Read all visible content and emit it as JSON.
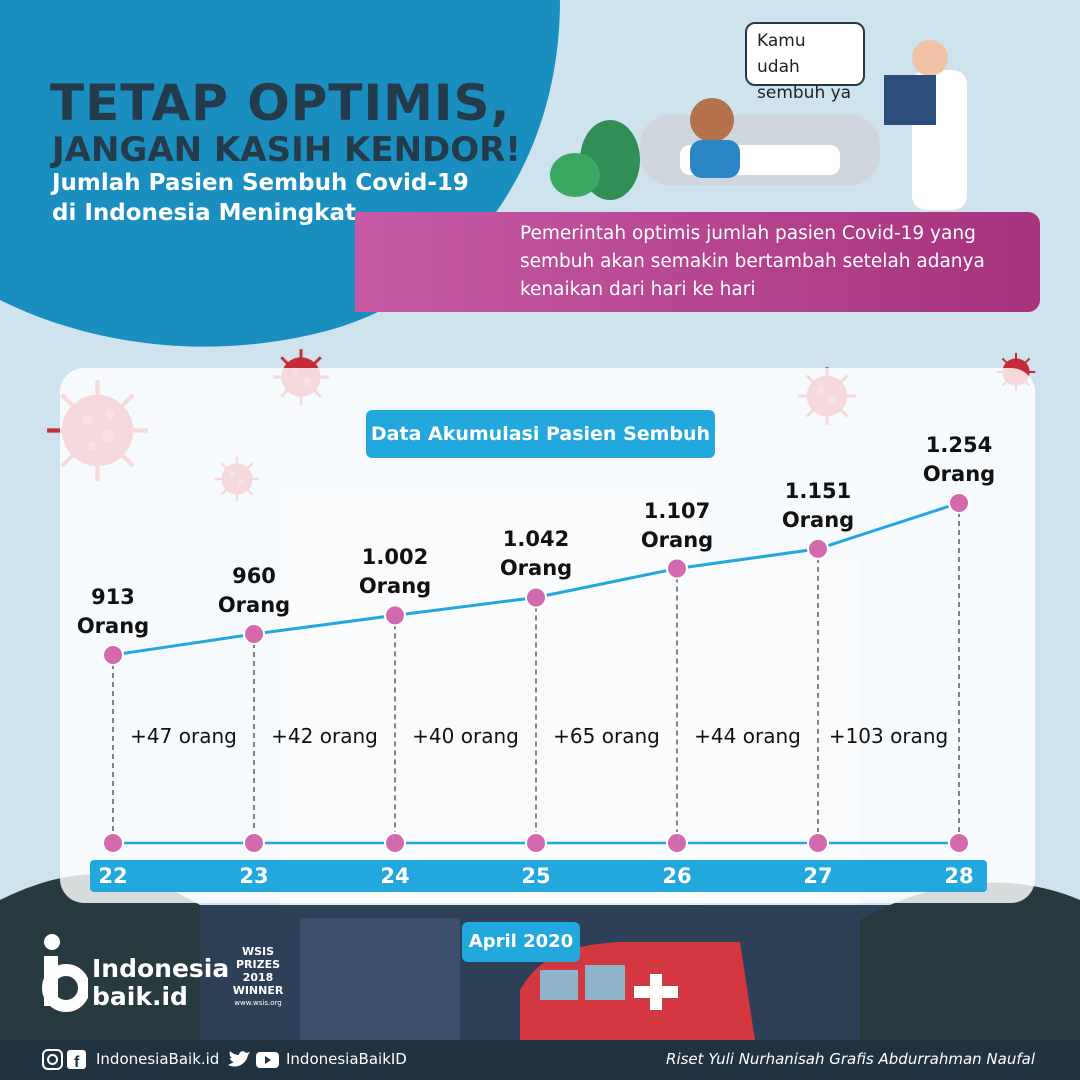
{
  "header": {
    "title_line1": "TETAP OPTIMIS,",
    "title_line2": "JANGAN KASIH KENDOR!",
    "subtitle": "Jumlah Pasien Sembuh Covid-19 di Indonesia Meningkat"
  },
  "speech_bubble": "Kamu udah sembuh ya",
  "description": "Pemerintah optimis jumlah pasien Covid-19 yang sembuh akan semakin bertambah setelah adanya kenaikan dari hari ke hari",
  "colors": {
    "accent": "#23a8dd",
    "point": "#d36ab0",
    "line": "#23a8dd",
    "pink": "#b6428f",
    "dark": "#233b4a"
  },
  "chart_data": {
    "type": "line",
    "title": "Data Akumulasi Pasien Sembuh",
    "xlabel": "April 2020",
    "x": [
      "22",
      "23",
      "24",
      "25",
      "26",
      "27",
      "28"
    ],
    "values": [
      913,
      960,
      1002,
      1042,
      1107,
      1151,
      1254
    ],
    "value_labels": [
      "913",
      "960",
      "1.002",
      "1.042",
      "1.107",
      "1.151",
      "1.254"
    ],
    "unit": "Orang",
    "increases": [
      "+47 orang",
      "+42 orang",
      "+40 orang",
      "+65 orang",
      "+44 orang",
      "+103 orang"
    ],
    "grid": false
  },
  "branding": {
    "logo_line1": "Indonesia",
    "logo_line2": "baik.id",
    "badge_line1": "WSIS",
    "badge_line2": "PRIZES",
    "badge_line3": "2018",
    "badge_line4": "WINNER",
    "badge_line5": "www.wsis.org",
    "social_site": "IndonesiaBaik.id",
    "social_handle": "IndonesiaBaikID",
    "credit": "Riset Yuli Nurhanisah Grafis Abdurrahman Naufal"
  }
}
